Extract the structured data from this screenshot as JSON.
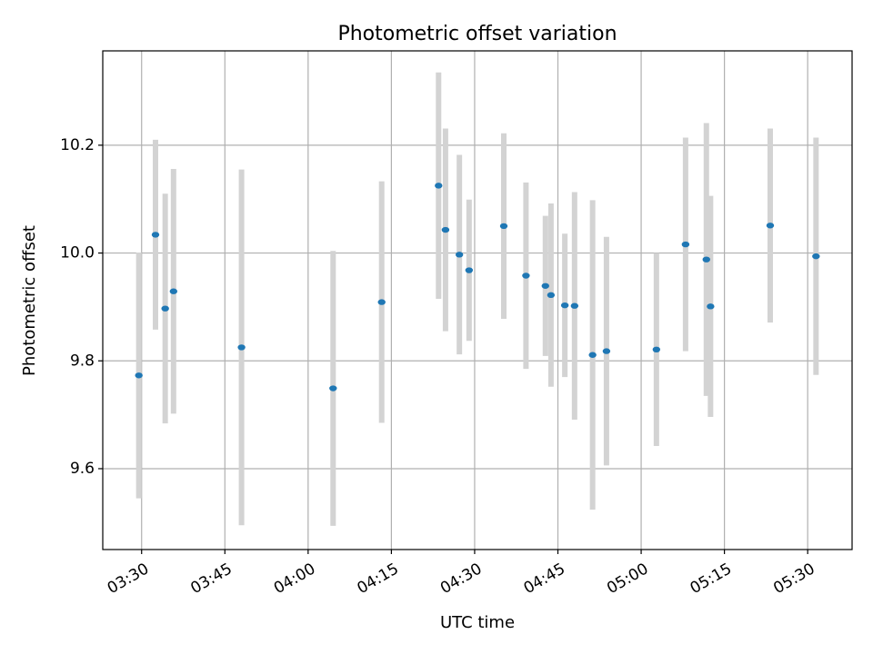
{
  "colors": {
    "point": "#1f77b4",
    "errorbar": "#d3d3d3",
    "grid": "#b0b0b0",
    "axis": "#000000"
  },
  "chart_data": {
    "type": "scatter",
    "title": "Photometric offset variation",
    "xlabel": "UTC time",
    "ylabel": "Photometric offset",
    "grid": true,
    "x_is_time": true,
    "xlim": [
      "03:23",
      "05:38"
    ],
    "ylim": [
      9.45,
      10.375
    ],
    "x_ticks": [
      "03:30",
      "03:45",
      "04:00",
      "04:15",
      "04:30",
      "04:45",
      "05:00",
      "05:15",
      "05:30"
    ],
    "y_ticks": [
      9.6,
      9.8,
      10.0,
      10.2
    ],
    "y_tick_labels": [
      "9.6",
      "9.8",
      "10.0",
      "10.2"
    ],
    "points": [
      {
        "x": "03:29:30",
        "y": 9.773,
        "err": 0.228
      },
      {
        "x": "03:32:30",
        "y": 10.034,
        "err": 0.176
      },
      {
        "x": "03:34:15",
        "y": 9.897,
        "err": 0.213
      },
      {
        "x": "03:35:45",
        "y": 9.929,
        "err": 0.227
      },
      {
        "x": "03:48:00",
        "y": 9.825,
        "err": 0.33
      },
      {
        "x": "04:04:30",
        "y": 9.749,
        "err": 0.255
      },
      {
        "x": "04:13:15",
        "y": 9.909,
        "err": 0.224
      },
      {
        "x": "04:23:30",
        "y": 10.125,
        "err": 0.21
      },
      {
        "x": "04:24:45",
        "y": 10.043,
        "err": 0.188
      },
      {
        "x": "04:27:15",
        "y": 9.997,
        "err": 0.185
      },
      {
        "x": "04:29:00",
        "y": 9.968,
        "err": 0.131
      },
      {
        "x": "04:35:15",
        "y": 10.05,
        "err": 0.172
      },
      {
        "x": "04:39:15",
        "y": 9.958,
        "err": 0.173
      },
      {
        "x": "04:42:45",
        "y": 9.939,
        "err": 0.13
      },
      {
        "x": "04:43:45",
        "y": 9.922,
        "err": 0.17
      },
      {
        "x": "04:46:15",
        "y": 9.903,
        "err": 0.133
      },
      {
        "x": "04:48:00",
        "y": 9.902,
        "err": 0.211
      },
      {
        "x": "04:51:15",
        "y": 9.811,
        "err": 0.287
      },
      {
        "x": "04:53:45",
        "y": 9.818,
        "err": 0.212
      },
      {
        "x": "05:02:45",
        "y": 9.821,
        "err": 0.179
      },
      {
        "x": "05:08:00",
        "y": 10.016,
        "err": 0.198
      },
      {
        "x": "05:11:45",
        "y": 9.988,
        "err": 0.253
      },
      {
        "x": "05:12:30",
        "y": 9.901,
        "err": 0.205
      },
      {
        "x": "05:23:15",
        "y": 10.051,
        "err": 0.18
      },
      {
        "x": "05:31:30",
        "y": 9.994,
        "err": 0.22
      }
    ]
  }
}
